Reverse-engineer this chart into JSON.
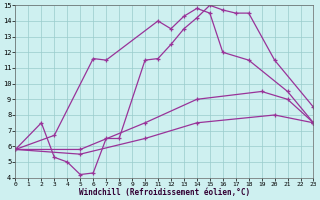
{
  "xlabel": "Windchill (Refroidissement éolien,°C)",
  "bg_color": "#cef0f0",
  "line_color": "#993399",
  "grid_color": "#99cccc",
  "xmin": 0,
  "xmax": 23,
  "ymin": 4,
  "ymax": 15,
  "yticks": [
    4,
    5,
    6,
    7,
    8,
    9,
    10,
    11,
    12,
    13,
    14,
    15
  ],
  "xticks": [
    0,
    1,
    2,
    3,
    4,
    5,
    6,
    7,
    8,
    9,
    10,
    11,
    12,
    13,
    14,
    15,
    16,
    17,
    18,
    19,
    20,
    21,
    22,
    23
  ],
  "curve1_x": [
    0,
    2,
    3,
    4,
    5,
    6,
    7,
    8,
    10,
    11,
    12,
    13,
    14,
    15,
    16,
    17,
    18,
    20,
    23
  ],
  "curve1_y": [
    5.8,
    7.5,
    5.3,
    5.0,
    4.2,
    4.3,
    6.5,
    6.5,
    11.5,
    11.6,
    12.5,
    13.5,
    14.2,
    15.0,
    14.7,
    14.5,
    14.5,
    11.5,
    8.5
  ],
  "curve2_x": [
    0,
    3,
    6,
    7,
    11,
    12,
    13,
    14,
    15,
    16,
    18,
    21,
    23
  ],
  "curve2_y": [
    5.8,
    6.7,
    11.6,
    11.5,
    14.0,
    13.5,
    14.3,
    14.8,
    14.5,
    12.0,
    11.5,
    9.5,
    7.5
  ],
  "curve3_x": [
    0,
    5,
    10,
    14,
    19,
    21,
    23
  ],
  "curve3_y": [
    5.8,
    5.8,
    7.5,
    9.0,
    9.5,
    9.0,
    7.5
  ],
  "curve4_x": [
    0,
    5,
    10,
    14,
    20,
    23
  ],
  "curve4_y": [
    5.8,
    5.5,
    6.5,
    7.5,
    8.0,
    7.5
  ]
}
